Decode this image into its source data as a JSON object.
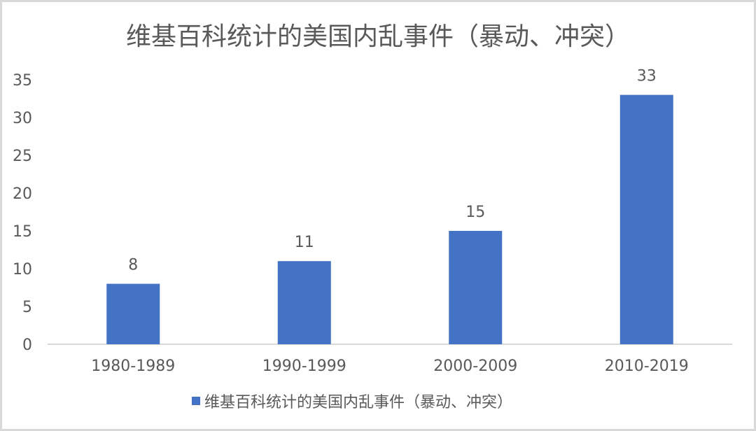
{
  "chart_data": {
    "type": "bar",
    "title": "维基百科统计的美国内乱事件（暴动、冲突）",
    "categories": [
      "1980-1989",
      "1990-1999",
      "2000-2009",
      "2010-2019"
    ],
    "series": [
      {
        "name": "维基百科统计的美国内乱事件（暴动、冲突）",
        "values": [
          8,
          11,
          15,
          33
        ]
      }
    ],
    "data_labels": [
      "8",
      "11",
      "15",
      "33"
    ],
    "ylim": [
      0,
      35
    ],
    "yticks": [
      "0",
      "5",
      "10",
      "15",
      "20",
      "25",
      "30",
      "35"
    ],
    "xlabel": "",
    "ylabel": "",
    "grid": false,
    "legend": "bottom",
    "colors": {
      "bar": "#4472c4",
      "text": "#595959",
      "axis": "#d9d9d9"
    }
  }
}
